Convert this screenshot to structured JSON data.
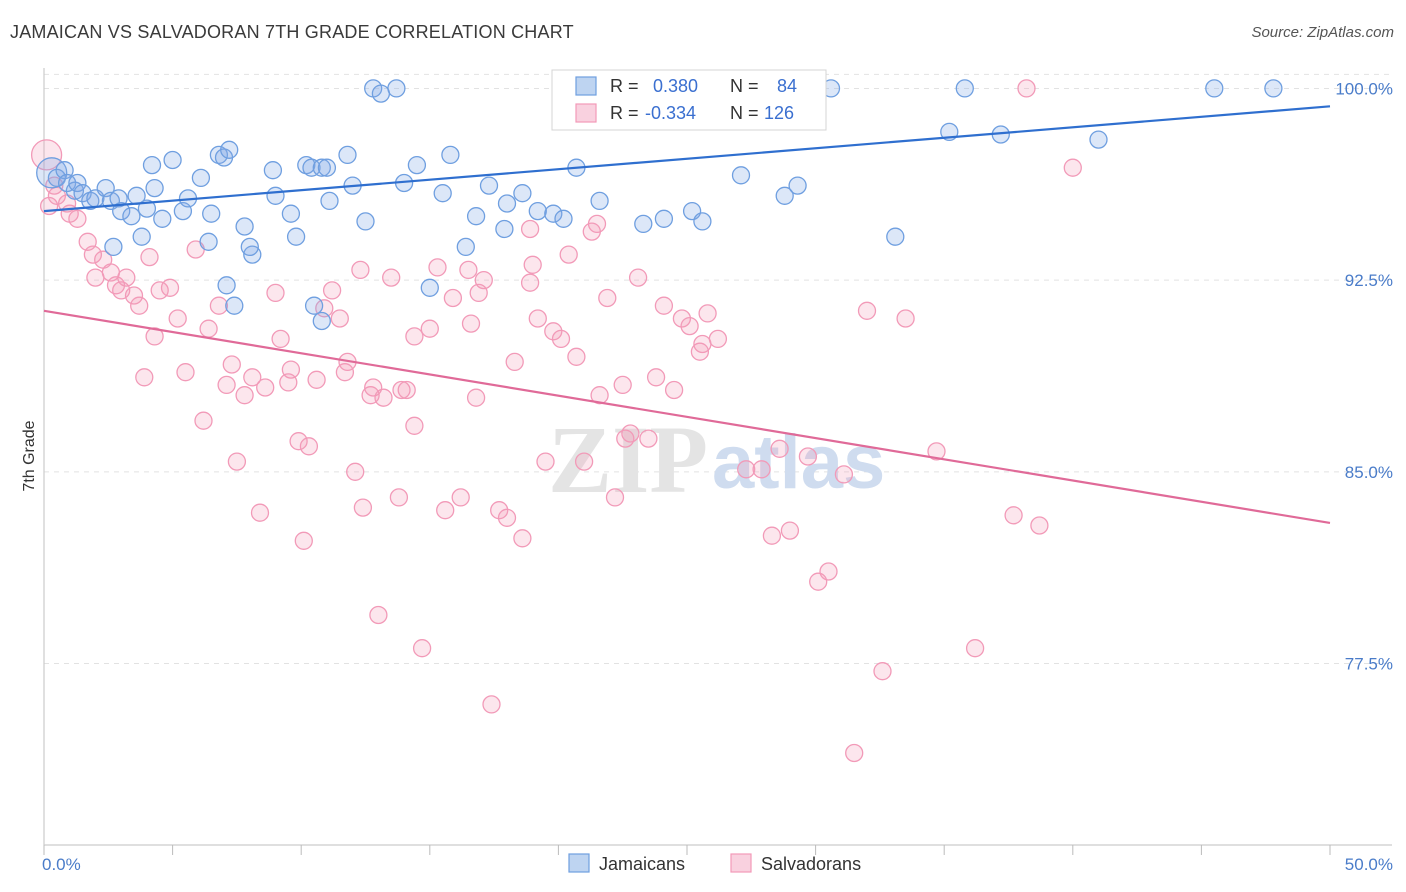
{
  "header": {
    "title": "JAMAICAN VS SALVADORAN 7TH GRADE CORRELATION CHART",
    "source": "Source: ZipAtlas.com"
  },
  "watermark": {
    "part1": "ZIP",
    "part2": "atlas"
  },
  "legend": {
    "rows": [
      {
        "r_label": "R =",
        "r_value": "0.380",
        "n_label": "N =",
        "n_value": "84",
        "color": "#6f9fe0"
      },
      {
        "r_label": "R =",
        "r_value": "-0.334",
        "n_label": "N =",
        "n_value": "126",
        "color": "#f29ab8"
      }
    ]
  },
  "bottom_legend": [
    {
      "label": "Jamaicans",
      "color": "#6f9fe0"
    },
    {
      "label": "Salvadorans",
      "color": "#f29ab8"
    }
  ],
  "chart_data": {
    "type": "scatter",
    "title": "JAMAICAN VS SALVADORAN 7TH GRADE CORRELATION CHART",
    "xlabel": "",
    "ylabel": "7th Grade",
    "xlim": [
      0,
      50
    ],
    "ylim": [
      70.4,
      100.8
    ],
    "x_tick_labels": [
      {
        "value": 0,
        "label": "0.0%"
      },
      {
        "value": 50,
        "label": "50.0%"
      }
    ],
    "y_tick_labels": [
      {
        "value": 100,
        "label": "100.0%"
      },
      {
        "value": 92.5,
        "label": "92.5%"
      },
      {
        "value": 85,
        "label": "85.0%"
      },
      {
        "value": 77.5,
        "label": "77.5%"
      }
    ],
    "grid": "horizontal dashed",
    "legend_position": "top-center",
    "series": [
      {
        "name": "Jamaicans",
        "color": "#6f9fe0",
        "trend": {
          "x": [
            0,
            50
          ],
          "y": [
            95.2,
            99.3
          ]
        },
        "points": [
          [
            0.3,
            96.7
          ],
          [
            0.5,
            96.5
          ],
          [
            0.8,
            96.8
          ],
          [
            0.9,
            96.3
          ],
          [
            1.2,
            96.0
          ],
          [
            1.3,
            96.3
          ],
          [
            1.5,
            95.9
          ],
          [
            1.8,
            95.6
          ],
          [
            2.0,
            95.7
          ],
          [
            2.4,
            96.1
          ],
          [
            2.6,
            95.6
          ],
          [
            2.9,
            95.7
          ],
          [
            3.0,
            95.2
          ],
          [
            3.4,
            95.0
          ],
          [
            3.6,
            95.8
          ],
          [
            3.8,
            94.2
          ],
          [
            4.0,
            95.3
          ],
          [
            4.2,
            97.0
          ],
          [
            4.3,
            96.1
          ],
          [
            4.6,
            94.9
          ],
          [
            5.0,
            97.2
          ],
          [
            5.4,
            95.2
          ],
          [
            5.6,
            95.7
          ],
          [
            6.1,
            96.5
          ],
          [
            6.5,
            95.1
          ],
          [
            6.8,
            97.4
          ],
          [
            7.0,
            97.3
          ],
          [
            7.2,
            97.6
          ],
          [
            7.8,
            94.6
          ],
          [
            8.1,
            93.5
          ],
          [
            8.0,
            93.8
          ],
          [
            8.9,
            96.8
          ],
          [
            9.0,
            95.8
          ],
          [
            9.6,
            95.1
          ],
          [
            9.8,
            94.2
          ],
          [
            10.2,
            97.0
          ],
          [
            10.4,
            96.9
          ],
          [
            10.8,
            96.9
          ],
          [
            11.0,
            96.9
          ],
          [
            11.8,
            97.4
          ],
          [
            11.1,
            95.6
          ],
          [
            12.0,
            96.2
          ],
          [
            12.5,
            94.8
          ],
          [
            12.8,
            100.0
          ],
          [
            13.1,
            99.8
          ],
          [
            13.7,
            100.0
          ],
          [
            14.0,
            96.3
          ],
          [
            15.8,
            97.4
          ],
          [
            15.0,
            92.2
          ],
          [
            14.5,
            97.0
          ],
          [
            15.5,
            95.9
          ],
          [
            16.4,
            93.8
          ],
          [
            16.8,
            95.0
          ],
          [
            17.3,
            96.2
          ],
          [
            17.9,
            94.5
          ],
          [
            18.0,
            95.5
          ],
          [
            18.6,
            95.9
          ],
          [
            19.2,
            95.2
          ],
          [
            19.8,
            95.1
          ],
          [
            20.2,
            94.9
          ],
          [
            20.7,
            96.9
          ],
          [
            21.6,
            95.6
          ],
          [
            22.1,
            100.0
          ],
          [
            23.3,
            94.7
          ],
          [
            24.1,
            94.9
          ],
          [
            25.2,
            95.2
          ],
          [
            25.6,
            94.8
          ],
          [
            27.1,
            96.6
          ],
          [
            28.8,
            95.8
          ],
          [
            29.3,
            96.2
          ],
          [
            30.6,
            100.0
          ],
          [
            33.1,
            94.2
          ],
          [
            35.2,
            98.3
          ],
          [
            35.8,
            100.0
          ],
          [
            37.2,
            98.2
          ],
          [
            41.0,
            98.0
          ],
          [
            45.5,
            100.0
          ],
          [
            47.8,
            100.0
          ],
          [
            6.4,
            94.0
          ],
          [
            2.7,
            93.8
          ],
          [
            7.1,
            92.3
          ],
          [
            7.4,
            91.5
          ],
          [
            10.5,
            91.5
          ],
          [
            10.8,
            90.9
          ]
        ]
      },
      {
        "name": "Salvadorans",
        "color": "#f29ab8",
        "trend": {
          "x": [
            0,
            50
          ],
          "y": [
            91.3,
            83.0
          ]
        },
        "points": [
          [
            0.1,
            97.4
          ],
          [
            0.4,
            96.2
          ],
          [
            0.5,
            95.8
          ],
          [
            0.9,
            95.5
          ],
          [
            1.0,
            95.1
          ],
          [
            1.3,
            94.9
          ],
          [
            1.7,
            94.0
          ],
          [
            1.9,
            93.5
          ],
          [
            2.0,
            92.6
          ],
          [
            2.3,
            93.3
          ],
          [
            2.6,
            92.8
          ],
          [
            2.8,
            92.3
          ],
          [
            3.0,
            92.1
          ],
          [
            3.2,
            92.6
          ],
          [
            3.5,
            91.9
          ],
          [
            3.7,
            91.5
          ],
          [
            3.9,
            88.7
          ],
          [
            4.1,
            93.4
          ],
          [
            4.3,
            90.3
          ],
          [
            4.5,
            92.1
          ],
          [
            4.9,
            92.2
          ],
          [
            5.2,
            91.0
          ],
          [
            5.5,
            88.9
          ],
          [
            5.9,
            93.7
          ],
          [
            6.2,
            87.0
          ],
          [
            6.4,
            90.6
          ],
          [
            6.8,
            91.5
          ],
          [
            7.1,
            88.4
          ],
          [
            7.3,
            89.2
          ],
          [
            7.5,
            85.4
          ],
          [
            7.8,
            88.0
          ],
          [
            8.1,
            88.7
          ],
          [
            8.4,
            83.4
          ],
          [
            8.6,
            88.3
          ],
          [
            9.0,
            92.0
          ],
          [
            9.2,
            90.2
          ],
          [
            9.6,
            89.0
          ],
          [
            9.9,
            86.2
          ],
          [
            10.1,
            82.3
          ],
          [
            10.3,
            86.0
          ],
          [
            10.6,
            88.6
          ],
          [
            10.9,
            91.4
          ],
          [
            11.2,
            92.1
          ],
          [
            11.5,
            91.0
          ],
          [
            11.8,
            89.3
          ],
          [
            12.1,
            85.0
          ],
          [
            12.4,
            83.6
          ],
          [
            12.7,
            88.0
          ],
          [
            13.0,
            79.4
          ],
          [
            13.2,
            87.9
          ],
          [
            13.5,
            92.6
          ],
          [
            13.8,
            84.0
          ],
          [
            14.1,
            88.2
          ],
          [
            14.4,
            86.8
          ],
          [
            14.7,
            78.1
          ],
          [
            15.0,
            90.6
          ],
          [
            15.3,
            93.0
          ],
          [
            15.6,
            83.5
          ],
          [
            15.9,
            91.8
          ],
          [
            16.2,
            84.0
          ],
          [
            16.5,
            92.9
          ],
          [
            16.8,
            87.9
          ],
          [
            17.1,
            92.5
          ],
          [
            17.4,
            75.9
          ],
          [
            17.7,
            83.5
          ],
          [
            18.0,
            83.2
          ],
          [
            18.3,
            89.3
          ],
          [
            18.6,
            82.4
          ],
          [
            18.9,
            92.4
          ],
          [
            19.2,
            91.0
          ],
          [
            19.5,
            85.4
          ],
          [
            19.8,
            90.5
          ],
          [
            20.1,
            90.2
          ],
          [
            20.4,
            93.5
          ],
          [
            20.7,
            89.5
          ],
          [
            21.0,
            85.4
          ],
          [
            21.3,
            94.4
          ],
          [
            21.6,
            88.0
          ],
          [
            21.9,
            91.8
          ],
          [
            22.2,
            84.0
          ],
          [
            22.5,
            88.4
          ],
          [
            22.8,
            86.5
          ],
          [
            23.1,
            92.6
          ],
          [
            23.5,
            86.3
          ],
          [
            23.8,
            88.7
          ],
          [
            24.1,
            91.5
          ],
          [
            24.5,
            88.2
          ],
          [
            24.8,
            91.0
          ],
          [
            25.1,
            90.7
          ],
          [
            25.5,
            89.7
          ],
          [
            25.8,
            91.2
          ],
          [
            26.2,
            90.2
          ],
          [
            26.8,
            100.0
          ],
          [
            27.3,
            85.1
          ],
          [
            27.9,
            85.1
          ],
          [
            28.3,
            82.5
          ],
          [
            28.6,
            85.9
          ],
          [
            29.0,
            82.7
          ],
          [
            29.7,
            85.6
          ],
          [
            30.1,
            80.7
          ],
          [
            30.5,
            81.1
          ],
          [
            31.1,
            84.9
          ],
          [
            32.0,
            91.3
          ],
          [
            32.6,
            77.2
          ],
          [
            33.5,
            91.0
          ],
          [
            34.7,
            85.8
          ],
          [
            36.2,
            78.1
          ],
          [
            37.7,
            83.3
          ],
          [
            38.2,
            100.0
          ],
          [
            38.7,
            82.9
          ],
          [
            40.0,
            96.9
          ],
          [
            31.5,
            74.0
          ],
          [
            25.6,
            90.0
          ],
          [
            16.6,
            90.8
          ],
          [
            13.9,
            88.2
          ],
          [
            12.8,
            88.3
          ],
          [
            9.5,
            88.5
          ],
          [
            14.4,
            90.3
          ],
          [
            11.7,
            88.9
          ],
          [
            22.6,
            86.3
          ],
          [
            16.9,
            92.0
          ],
          [
            12.3,
            92.9
          ],
          [
            18.9,
            94.5
          ],
          [
            21.5,
            94.7
          ],
          [
            19.0,
            93.1
          ],
          [
            0.2,
            95.4
          ]
        ]
      }
    ]
  }
}
